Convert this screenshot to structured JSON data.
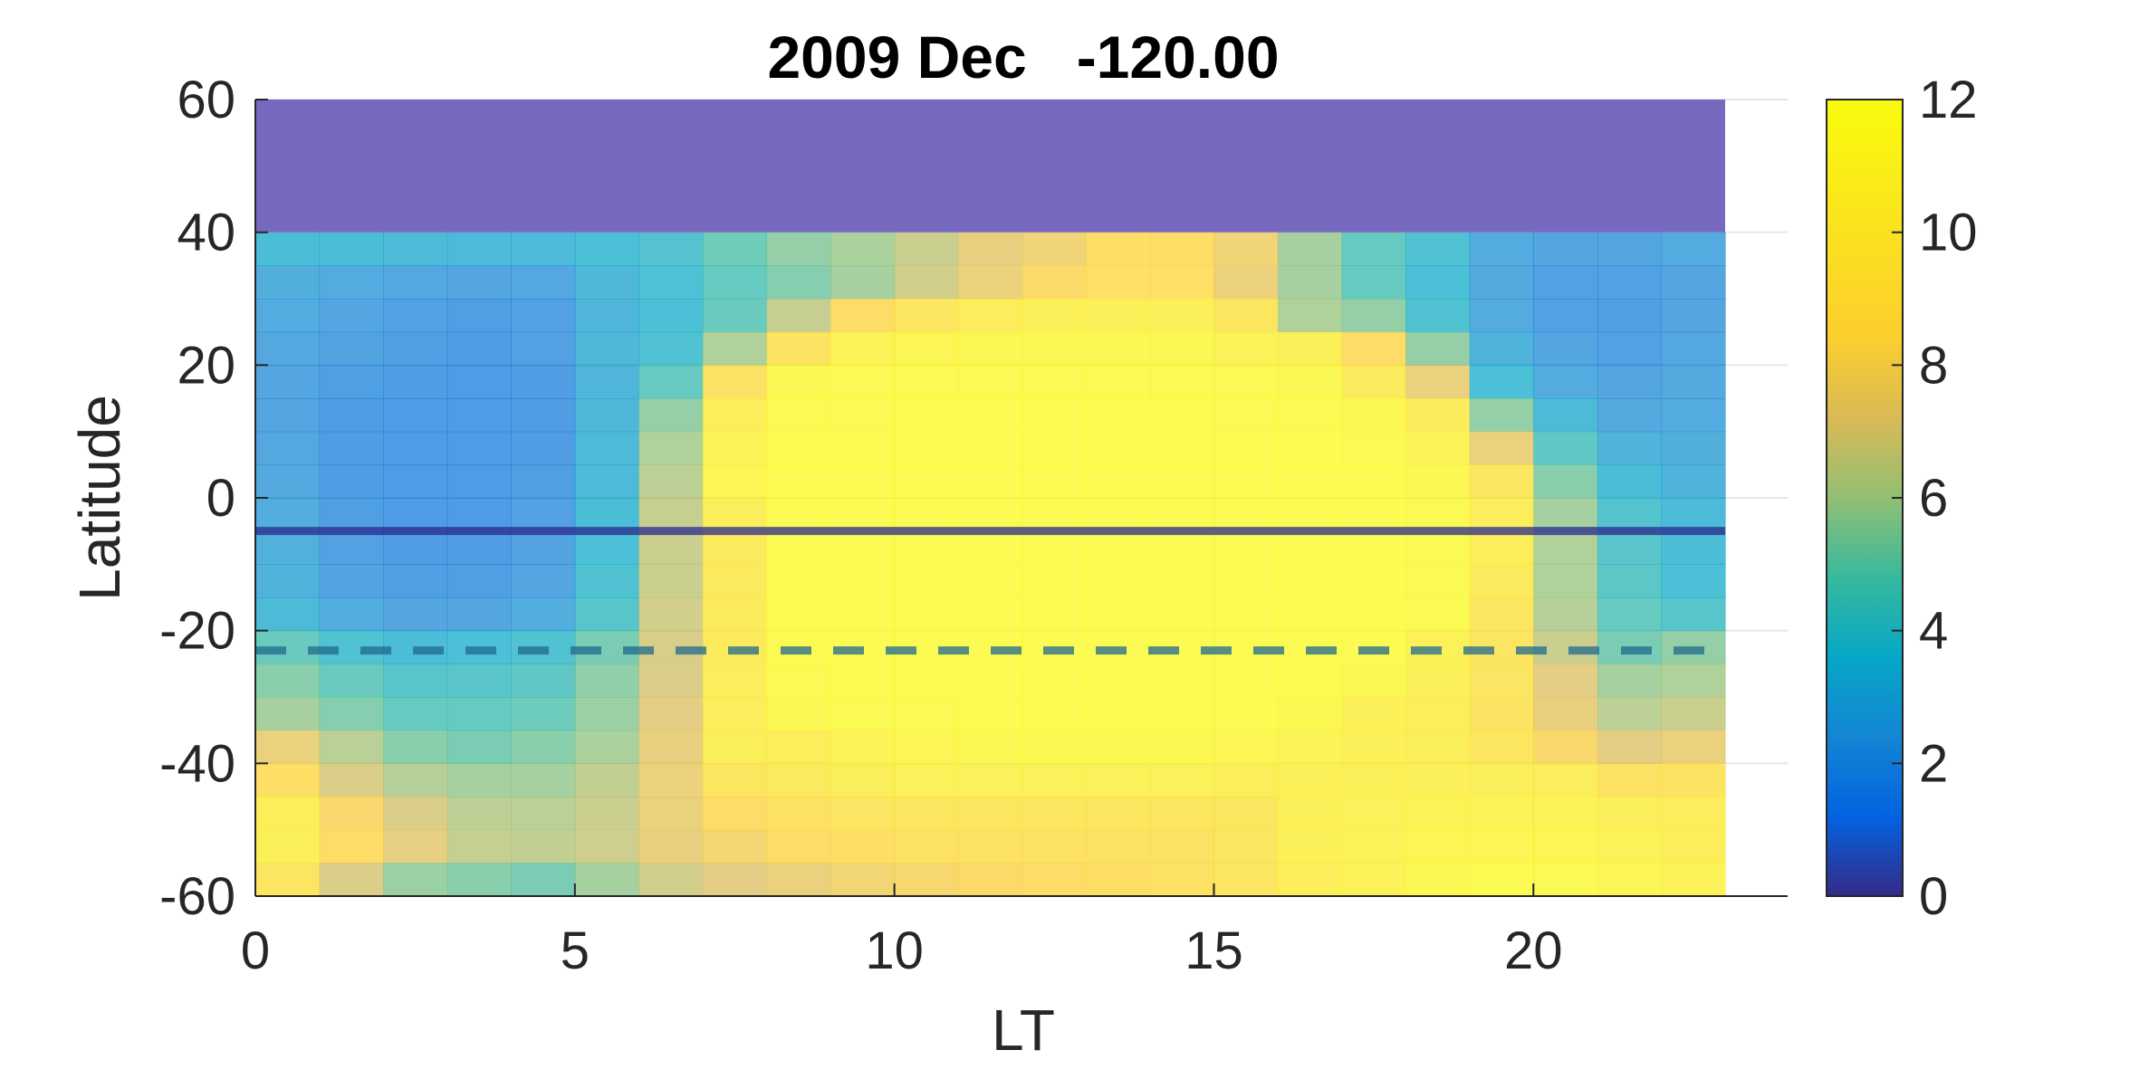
{
  "chart_data": {
    "type": "heatmap",
    "title": "2009 Dec   -120.00",
    "xlabel": "LT",
    "ylabel": "Latitude",
    "xlim": [
      0,
      23
    ],
    "ylim": [
      -60,
      60
    ],
    "x_ticks": [
      "0",
      "5",
      "10",
      "15",
      "20"
    ],
    "x_tick_values": [
      0,
      5,
      10,
      15,
      20
    ],
    "y_ticks": [
      "60",
      "40",
      "20",
      "0",
      "-20",
      "-40",
      "-60"
    ],
    "y_tick_values": [
      60,
      40,
      20,
      0,
      -20,
      -40,
      -60
    ],
    "colorbar": {
      "min": 0,
      "max": 12,
      "ticks": [
        "12",
        "10",
        "8",
        "6",
        "4",
        "2",
        "0"
      ],
      "tick_values": [
        12,
        10,
        8,
        6,
        4,
        2,
        0
      ],
      "colormap": "parula"
    },
    "cell_width_hours": 1,
    "cell_height_deg": 5,
    "no_data_above_lat": 40,
    "no_data_color": "#7869c0",
    "lat_bands": [
      37.5,
      32.5,
      27.5,
      22.5,
      17.5,
      12.5,
      7.5,
      2.5,
      -2.5,
      -7.5,
      -12.5,
      -17.5,
      -22.5,
      -27.5,
      -32.5,
      -37.5,
      -42.5,
      -47.5,
      -52.5,
      -57.5
    ],
    "lt_hours": [
      0,
      1,
      2,
      3,
      4,
      5,
      6,
      7,
      8,
      9,
      10,
      11,
      12,
      13,
      14,
      15,
      16,
      17,
      18,
      19,
      20,
      21,
      22
    ],
    "values": [
      [
        3.5,
        3.5,
        3.4,
        3.3,
        3.3,
        3.6,
        3.9,
        4.8,
        5.5,
        5.9,
        6.6,
        7.4,
        7.8,
        8.6,
        8.6,
        7.8,
        5.8,
        4.5,
        3.8,
        2.6,
        2.3,
        2.3,
        2.6
      ],
      [
        2.8,
        2.6,
        2.4,
        2.3,
        2.4,
        3.2,
        3.7,
        4.5,
        5.2,
        5.8,
        6.8,
        7.6,
        8.3,
        8.9,
        8.9,
        7.6,
        5.8,
        4.5,
        3.6,
        2.5,
        2.1,
        2.1,
        2.3
      ],
      [
        2.6,
        2.3,
        2.1,
        2.0,
        2.1,
        3.1,
        3.6,
        4.6,
        6.5,
        8.5,
        9.6,
        10.3,
        10.6,
        10.6,
        10.6,
        9.6,
        6.0,
        5.5,
        3.8,
        2.6,
        2.1,
        2.0,
        2.3
      ],
      [
        2.4,
        2.2,
        2.0,
        1.9,
        2.1,
        3.2,
        3.8,
        6.0,
        9.3,
        11.0,
        11.2,
        11.4,
        11.4,
        11.4,
        11.4,
        10.8,
        10.6,
        8.5,
        5.5,
        3.0,
        2.3,
        2.1,
        2.4
      ],
      [
        2.3,
        2.0,
        1.9,
        1.8,
        1.9,
        3.1,
        4.5,
        9.0,
        11.5,
        11.6,
        11.7,
        11.7,
        11.7,
        11.7,
        11.7,
        11.6,
        11.4,
        10.0,
        7.5,
        3.6,
        2.6,
        2.3,
        2.5
      ],
      [
        2.3,
        1.9,
        1.8,
        1.8,
        1.9,
        3.2,
        5.5,
        10.5,
        11.7,
        11.7,
        11.8,
        11.8,
        11.8,
        11.8,
        11.8,
        11.7,
        11.6,
        11.5,
        10.2,
        5.5,
        3.4,
        2.5,
        2.6
      ],
      [
        2.4,
        1.9,
        1.8,
        1.8,
        1.9,
        3.3,
        6.0,
        11.0,
        11.8,
        11.8,
        11.8,
        11.8,
        11.8,
        11.8,
        11.8,
        11.8,
        11.8,
        11.6,
        11.0,
        7.5,
        4.3,
        3.0,
        2.8
      ],
      [
        2.5,
        1.9,
        1.8,
        1.8,
        2.0,
        3.4,
        6.3,
        11.2,
        11.8,
        11.8,
        11.8,
        11.8,
        11.8,
        11.8,
        11.8,
        11.8,
        11.8,
        11.8,
        11.4,
        9.5,
        5.3,
        3.5,
        3.0
      ],
      [
        2.7,
        2.0,
        1.8,
        1.8,
        2.1,
        3.5,
        6.5,
        10.4,
        11.8,
        11.8,
        11.8,
        11.8,
        11.8,
        11.8,
        11.8,
        11.8,
        11.8,
        11.8,
        11.7,
        10.3,
        5.8,
        3.9,
        3.3
      ],
      [
        2.9,
        2.1,
        1.9,
        1.9,
        2.2,
        3.6,
        6.6,
        10.0,
        11.8,
        11.8,
        11.8,
        11.8,
        11.8,
        11.8,
        11.8,
        11.8,
        11.8,
        11.8,
        11.7,
        10.5,
        6.0,
        4.1,
        3.5
      ],
      [
        3.0,
        2.2,
        2.0,
        2.0,
        2.3,
        3.8,
        6.6,
        10.0,
        11.8,
        11.8,
        11.8,
        11.8,
        11.8,
        11.8,
        11.8,
        11.8,
        11.8,
        11.8,
        11.7,
        10.0,
        6.0,
        4.2,
        3.6
      ],
      [
        3.4,
        2.7,
        2.3,
        2.3,
        2.7,
        4.0,
        6.8,
        10.1,
        11.8,
        11.8,
        11.8,
        11.8,
        11.8,
        11.8,
        11.8,
        11.8,
        11.8,
        11.8,
        11.6,
        9.6,
        6.1,
        4.5,
        4.0
      ],
      [
        4.6,
        3.8,
        3.5,
        3.6,
        3.8,
        5.0,
        6.9,
        10.2,
        11.8,
        11.8,
        11.8,
        11.8,
        11.8,
        11.8,
        11.8,
        11.8,
        11.8,
        11.8,
        10.8,
        9.4,
        6.6,
        5.0,
        5.5
      ],
      [
        5.3,
        4.6,
        4.0,
        4.1,
        4.3,
        5.4,
        7.0,
        10.3,
        11.7,
        11.8,
        11.8,
        11.8,
        11.8,
        11.8,
        11.8,
        11.8,
        11.8,
        11.4,
        10.6,
        9.4,
        7.2,
        5.8,
        6.0
      ],
      [
        5.8,
        5.2,
        4.5,
        4.5,
        4.7,
        5.6,
        7.2,
        10.3,
        11.4,
        11.6,
        11.7,
        11.8,
        11.8,
        11.8,
        11.8,
        11.8,
        11.5,
        10.6,
        10.5,
        9.2,
        7.4,
        6.3,
        6.6
      ],
      [
        7.5,
        6.2,
        5.3,
        5.0,
        5.3,
        5.9,
        7.4,
        10.4,
        10.5,
        11.0,
        11.3,
        11.4,
        11.5,
        11.5,
        11.5,
        11.3,
        11.0,
        10.6,
        10.4,
        9.5,
        8.2,
        7.2,
        7.5
      ],
      [
        8.7,
        7.0,
        6.1,
        5.8,
        5.8,
        6.4,
        7.6,
        9.6,
        10.0,
        10.4,
        10.7,
        10.7,
        10.7,
        10.7,
        10.7,
        10.5,
        10.6,
        10.6,
        10.6,
        10.4,
        10.3,
        9.0,
        9.3
      ],
      [
        10.5,
        8.2,
        7.0,
        6.3,
        6.2,
        6.6,
        7.5,
        8.5,
        9.0,
        9.4,
        9.6,
        9.6,
        9.6,
        9.6,
        9.6,
        9.6,
        10.6,
        10.7,
        10.9,
        11.0,
        11.0,
        10.4,
        10.3
      ],
      [
        10.6,
        8.5,
        7.3,
        6.5,
        6.4,
        6.7,
        7.4,
        8.0,
        8.5,
        8.8,
        9.0,
        9.0,
        9.0,
        9.0,
        9.1,
        9.5,
        10.6,
        10.8,
        11.2,
        11.3,
        11.3,
        10.8,
        10.5
      ],
      [
        9.5,
        7.0,
        5.6,
        5.3,
        5.0,
        5.8,
        6.8,
        7.2,
        7.5,
        7.9,
        8.1,
        8.3,
        8.5,
        8.7,
        9.0,
        9.5,
        10.5,
        10.8,
        11.5,
        11.8,
        11.7,
        11.2,
        11.0
      ]
    ],
    "lines": [
      {
        "style": "solid",
        "lat": -5,
        "color": "#2a2a8e"
      },
      {
        "style": "dashed",
        "lat": -23,
        "color": "#206a8e"
      }
    ]
  }
}
